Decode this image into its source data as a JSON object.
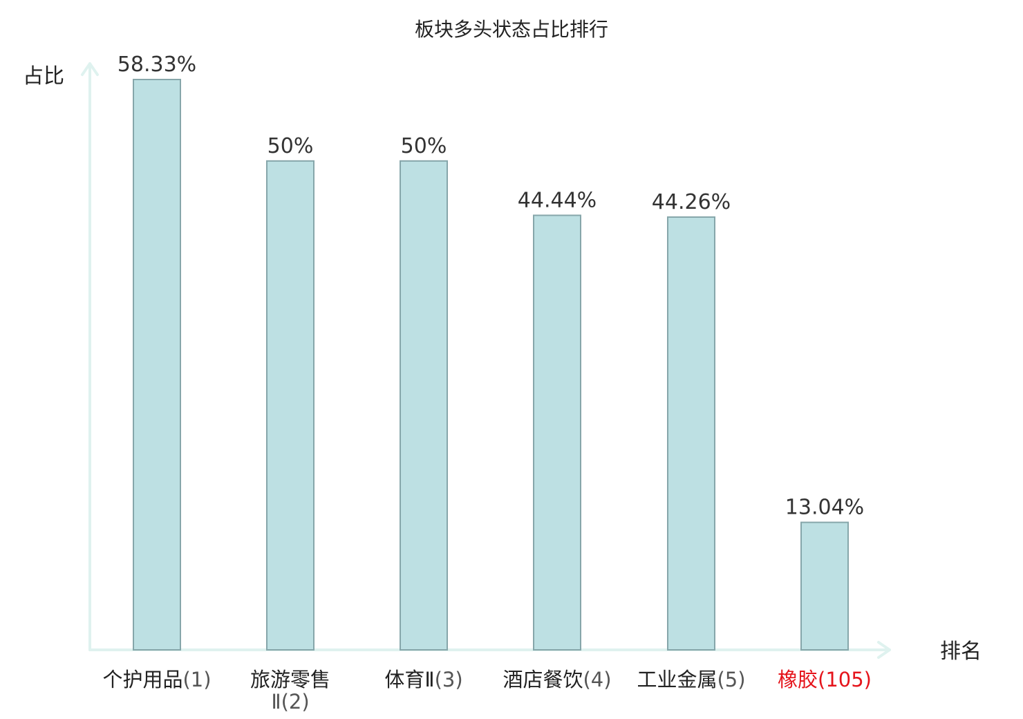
{
  "chart_data": {
    "type": "bar",
    "title": "板块多头状态占比排行",
    "ylabel": "占比",
    "xlabel": "排名",
    "categories": [
      {
        "name": "个护用品",
        "rank": "(1)",
        "highlight": false
      },
      {
        "name": "旅游零售",
        "rank": "Ⅱ(2)",
        "highlight": false,
        "wrap": true
      },
      {
        "name": "体育Ⅱ",
        "rank": "(3)",
        "highlight": false
      },
      {
        "name": "酒店餐饮",
        "rank": "(4)",
        "highlight": false
      },
      {
        "name": "工业金属",
        "rank": "(5)",
        "highlight": false
      },
      {
        "name": "橡胶",
        "rank": "(105)",
        "highlight": true
      }
    ],
    "values": [
      58.33,
      50,
      50,
      44.44,
      44.26,
      13.04
    ],
    "value_labels": [
      "58.33%",
      "50%",
      "50%",
      "44.44%",
      "44.26%",
      "13.04%"
    ],
    "ylim": [
      0,
      60
    ],
    "grid": false,
    "legend": "none"
  },
  "colors": {
    "bar_fill": "#bde0e3",
    "bar_stroke": "#86a6aa",
    "axis": "#dff2ef",
    "text": "#222222",
    "rank_text": "#555555",
    "highlight": "#e5141b"
  }
}
